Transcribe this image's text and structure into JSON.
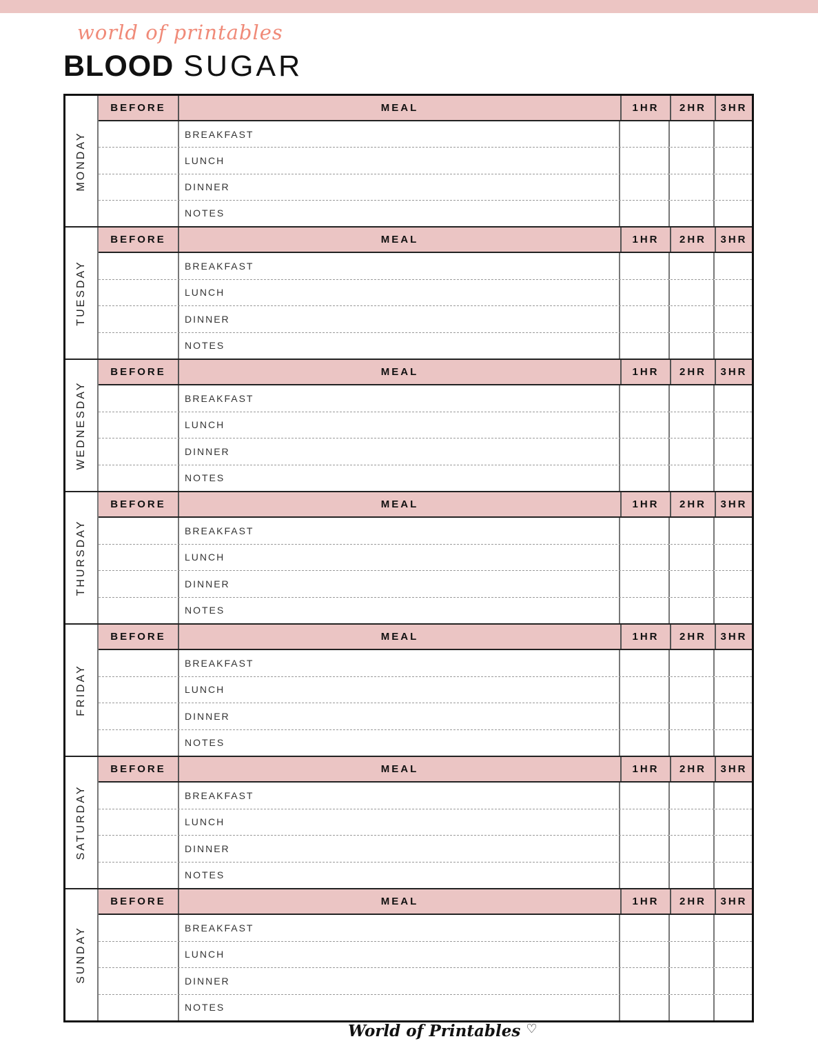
{
  "brand_script": "world of printables",
  "title": {
    "bold": "BLOOD",
    "light": "SUGAR"
  },
  "columns": [
    "BEFORE",
    "MEAL",
    "1HR",
    "2HR",
    "3HR"
  ],
  "meals": [
    "BREAKFAST",
    "LUNCH",
    "DINNER",
    "NOTES"
  ],
  "days": [
    "MONDAY",
    "TUESDAY",
    "WEDNESDAY",
    "THURSDAY",
    "FRIDAY",
    "SATURDAY",
    "SUNDAY"
  ],
  "footer": {
    "logo": "World of Printables",
    "heart": "♡"
  },
  "colors": {
    "header_fill": "#ebc5c4",
    "accent": "#f08a78"
  }
}
